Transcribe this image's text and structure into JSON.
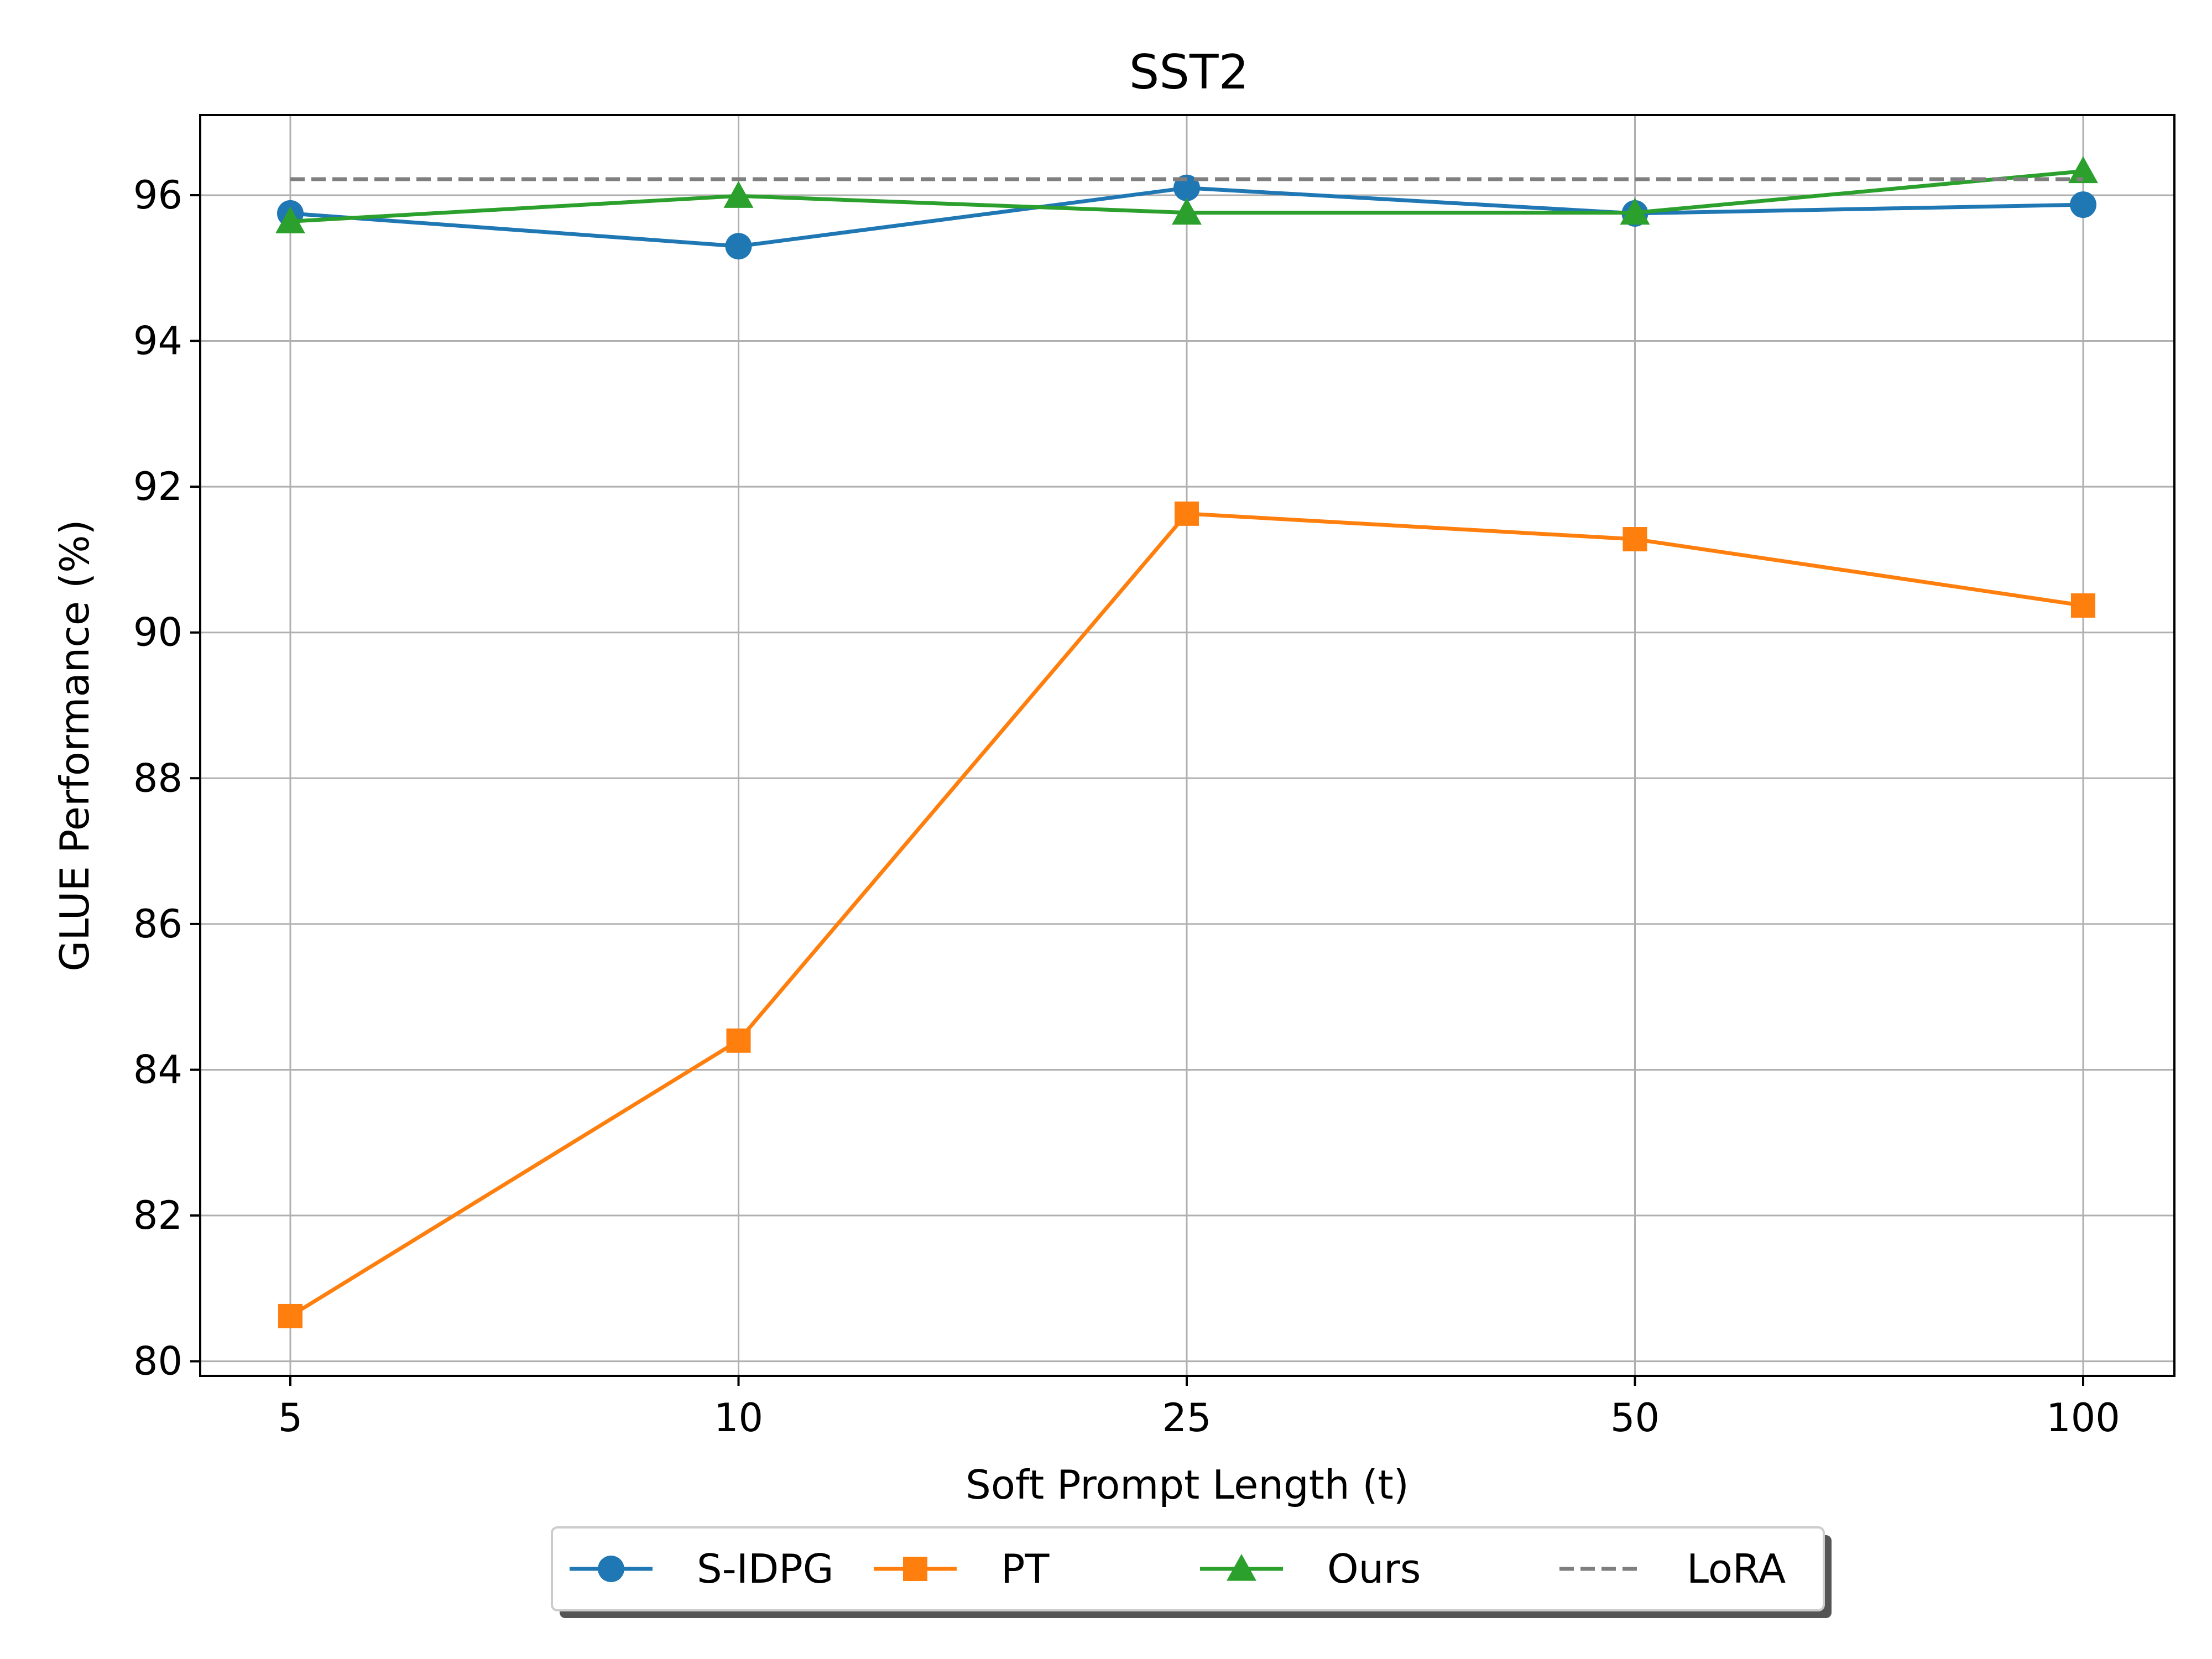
{
  "chart_data": {
    "type": "line",
    "title": "SST2",
    "xlabel": "Soft Prompt Length (t)",
    "ylabel": "GLUE Performance (%)",
    "categories": [
      "5",
      "10",
      "25",
      "50",
      "100"
    ],
    "ylim": [
      79.8,
      97.1
    ],
    "yticks": [
      80,
      82,
      84,
      86,
      88,
      90,
      92,
      94,
      96
    ],
    "grid": true,
    "legend_position": "bottom-center",
    "series": [
      {
        "name": "S-IDPG",
        "values": [
          95.75,
          95.3,
          96.1,
          95.75,
          95.87
        ],
        "color": "#1f77b4",
        "marker": "circle",
        "dashed": false
      },
      {
        "name": "PT",
        "values": [
          80.62,
          84.4,
          91.63,
          91.28,
          90.37
        ],
        "color": "#ff7f0e",
        "marker": "square",
        "dashed": false
      },
      {
        "name": "Ours",
        "values": [
          95.64,
          95.99,
          95.76,
          95.76,
          96.33
        ],
        "color": "#2ca02c",
        "marker": "triangle",
        "dashed": false
      },
      {
        "name": "LoRA",
        "values": [
          96.22,
          96.22,
          96.22,
          96.22,
          96.22
        ],
        "color": "#7f7f7f",
        "marker": "none",
        "dashed": true
      }
    ]
  }
}
